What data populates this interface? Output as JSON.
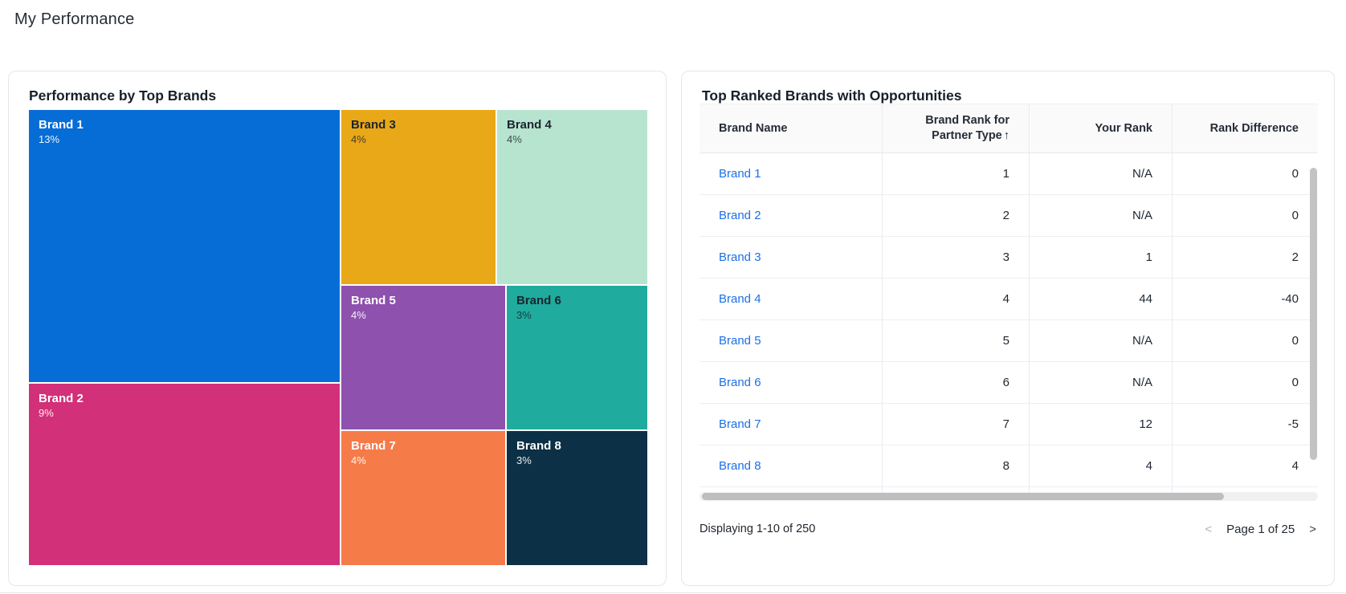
{
  "page": {
    "title": "My Performance"
  },
  "treemap_card": {
    "title": "Performance by Top Brands",
    "tiles": [
      {
        "name": "Brand 1",
        "value": "13%",
        "color": "#076DD6",
        "text": "light"
      },
      {
        "name": "Brand 2",
        "value": "9%",
        "color": "#D23078",
        "text": "light"
      },
      {
        "name": "Brand 3",
        "value": "4%",
        "color": "#E9A817",
        "text": "dark"
      },
      {
        "name": "Brand 4",
        "value": "4%",
        "color": "#B7E4CF",
        "text": "dark"
      },
      {
        "name": "Brand 5",
        "value": "4%",
        "color": "#8E51AE",
        "text": "light"
      },
      {
        "name": "Brand 6",
        "value": "3%",
        "color": "#1FAB9D",
        "text": "dark"
      },
      {
        "name": "Brand 7",
        "value": "4%",
        "color": "#F57B49",
        "text": "light"
      },
      {
        "name": "Brand 8",
        "value": "3%",
        "color": "#0C3045",
        "text": "light"
      }
    ]
  },
  "table_card": {
    "title": "Top Ranked Brands with Opportunities",
    "link_color": "#1B70E8",
    "columns": [
      "Brand Name",
      "Brand Rank for Partner Type",
      "Your Rank",
      "Rank Difference"
    ],
    "sort_arrow": "↑",
    "rows": [
      {
        "brand": "Brand 1",
        "brand_rank": "1",
        "your_rank": "N/A",
        "rank_diff": "0"
      },
      {
        "brand": "Brand 2",
        "brand_rank": "2",
        "your_rank": "N/A",
        "rank_diff": "0"
      },
      {
        "brand": "Brand 3",
        "brand_rank": "3",
        "your_rank": "1",
        "rank_diff": "2"
      },
      {
        "brand": "Brand 4",
        "brand_rank": "4",
        "your_rank": "44",
        "rank_diff": "-40"
      },
      {
        "brand": "Brand 5",
        "brand_rank": "5",
        "your_rank": "N/A",
        "rank_diff": "0"
      },
      {
        "brand": "Brand 6",
        "brand_rank": "6",
        "your_rank": "N/A",
        "rank_diff": "0"
      },
      {
        "brand": "Brand 7",
        "brand_rank": "7",
        "your_rank": "12",
        "rank_diff": "-5"
      },
      {
        "brand": "Brand 8",
        "brand_rank": "8",
        "your_rank": "4",
        "rank_diff": "4"
      }
    ],
    "footer": {
      "displaying": "Displaying 1-10 of 250",
      "prev": "<",
      "page_label": "Page 1 of 25",
      "next": ">"
    }
  },
  "chart_data": [
    {
      "type": "treemap",
      "title": "Performance by Top Brands",
      "items": [
        {
          "label": "Brand 1",
          "value_pct": 13,
          "color": "#076DD6"
        },
        {
          "label": "Brand 2",
          "value_pct": 9,
          "color": "#D23078"
        },
        {
          "label": "Brand 3",
          "value_pct": 4,
          "color": "#E9A817"
        },
        {
          "label": "Brand 4",
          "value_pct": 4,
          "color": "#B7E4CF"
        },
        {
          "label": "Brand 5",
          "value_pct": 4,
          "color": "#8E51AE"
        },
        {
          "label": "Brand 6",
          "value_pct": 3,
          "color": "#1FAB9D"
        },
        {
          "label": "Brand 7",
          "value_pct": 4,
          "color": "#F57B49"
        },
        {
          "label": "Brand 8",
          "value_pct": 3,
          "color": "#0C3045"
        }
      ]
    },
    {
      "type": "table",
      "title": "Top Ranked Brands with Opportunities",
      "columns": [
        "Brand Name",
        "Brand Rank for Partner Type",
        "Your Rank",
        "Rank Difference"
      ],
      "rows": [
        [
          "Brand 1",
          1,
          "N/A",
          0
        ],
        [
          "Brand 2",
          2,
          "N/A",
          0
        ],
        [
          "Brand 3",
          3,
          1,
          2
        ],
        [
          "Brand 4",
          4,
          44,
          -40
        ],
        [
          "Brand 5",
          5,
          "N/A",
          0
        ],
        [
          "Brand 6",
          6,
          "N/A",
          0
        ],
        [
          "Brand 7",
          7,
          12,
          -5
        ],
        [
          "Brand 8",
          8,
          4,
          4
        ]
      ],
      "footer": "Displaying 1-10 of 250",
      "pagination": "Page 1 of 25"
    }
  ]
}
